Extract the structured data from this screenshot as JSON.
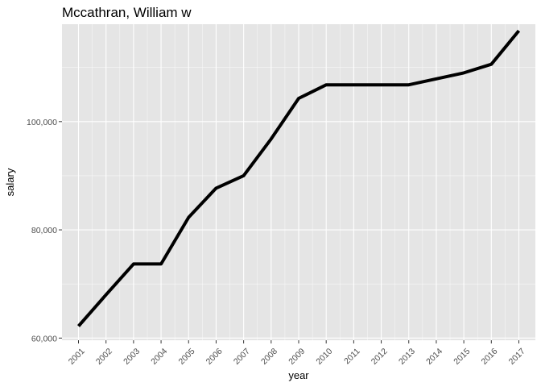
{
  "chart_data": {
    "type": "line",
    "title": "Mccathran, William w",
    "xlabel": "year",
    "ylabel": "salary",
    "x": [
      "2001",
      "2002",
      "2003",
      "2004",
      "2005",
      "2006",
      "2007",
      "2008",
      "2009",
      "2010",
      "2011",
      "2012",
      "2013",
      "2014",
      "2015",
      "2016",
      "2017"
    ],
    "series": [
      {
        "values": [
          62200,
          68000,
          73700,
          73700,
          82300,
          87700,
          90000,
          96800,
          104300,
          106800,
          106800,
          106800,
          106800,
          107900,
          109000,
          110600,
          116800
        ]
      }
    ],
    "ylim": [
      59600,
      118000
    ],
    "yticks": [
      60000,
      80000,
      100000
    ],
    "ytick_labels": [
      "60,000",
      "80,000",
      "100,000"
    ],
    "grid": true,
    "legend": "none",
    "colors": {
      "panel": "#e5e5e5",
      "grid_major": "#ffffff",
      "line": "#000000",
      "tick": "#4d4d4d"
    }
  }
}
